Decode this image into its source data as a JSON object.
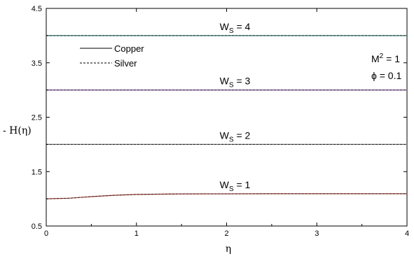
{
  "chart_data": {
    "type": "line",
    "title": "",
    "xlabel": "η",
    "ylabel": "- H(η)",
    "xlim": [
      0,
      4
    ],
    "ylim": [
      0.5,
      4.5
    ],
    "x_ticks": [
      0,
      1,
      2,
      3,
      4
    ],
    "y_tick_labels": [
      {
        "v": 0.5,
        "label": "0.5"
      },
      {
        "v": 1.5,
        "label": "1.5"
      },
      {
        "v": 2.5,
        "label": "2.5"
      },
      {
        "v": 3.5,
        "label": "3.5"
      },
      {
        "v": 4.5,
        "label": "4.5"
      }
    ],
    "grid": false,
    "legend": {
      "placement": "upper-left",
      "entries": [
        {
          "label": "Copper",
          "style": "solid"
        },
        {
          "label": "Silver",
          "style": "dashed"
        }
      ]
    },
    "parameters": {
      "m_base": "M",
      "m_exp": "2",
      "m_rest": " = 1",
      "phi": "ϕ = 0.1"
    },
    "series": [
      {
        "name": "Copper",
        "group": "Ws=1",
        "color": "#c0392b",
        "style": "solid",
        "x": [
          0,
          0.25,
          0.5,
          0.75,
          1.0,
          1.5,
          2.0,
          2.5,
          3.0,
          3.5,
          4.0
        ],
        "y": [
          1.0,
          1.01,
          1.04,
          1.065,
          1.08,
          1.09,
          1.092,
          1.093,
          1.093,
          1.093,
          1.093
        ]
      },
      {
        "name": "Silver",
        "group": "Ws=1",
        "color": "#222222",
        "style": "dashed",
        "x": [
          0,
          0.25,
          0.5,
          0.75,
          1.0,
          1.5,
          2.0,
          2.5,
          3.0,
          3.5,
          4.0
        ],
        "y": [
          1.0,
          1.01,
          1.04,
          1.065,
          1.08,
          1.09,
          1.092,
          1.093,
          1.093,
          1.093,
          1.093
        ]
      },
      {
        "name": "Copper",
        "group": "Ws=2",
        "color": "#7a7a7a",
        "style": "solid",
        "x": [
          0,
          4
        ],
        "y": [
          2.0,
          2.0
        ]
      },
      {
        "name": "Silver",
        "group": "Ws=2",
        "color": "#222222",
        "style": "dashed",
        "x": [
          0,
          4
        ],
        "y": [
          2.0,
          2.0
        ]
      },
      {
        "name": "Copper",
        "group": "Ws=3",
        "color": "#8e44ad",
        "style": "solid",
        "x": [
          0,
          4
        ],
        "y": [
          3.0,
          3.0
        ]
      },
      {
        "name": "Silver",
        "group": "Ws=3",
        "color": "#222222",
        "style": "dashed",
        "x": [
          0,
          4
        ],
        "y": [
          3.0,
          3.0
        ]
      },
      {
        "name": "Copper",
        "group": "Ws=4",
        "color": "#1e7b6f",
        "style": "solid",
        "x": [
          0,
          4
        ],
        "y": [
          4.0,
          4.0
        ]
      },
      {
        "name": "Silver",
        "group": "Ws=4",
        "color": "#222222",
        "style": "dashed",
        "x": [
          0,
          4
        ],
        "y": [
          4.0,
          4.0
        ]
      }
    ],
    "annotations": [
      {
        "base": "W",
        "sub": "S",
        "rest": " = 4",
        "x": 2.0,
        "y": 4.0
      },
      {
        "base": "W",
        "sub": "S",
        "rest": " = 3",
        "x": 2.0,
        "y": 3.0
      },
      {
        "base": "W",
        "sub": "S",
        "rest": " = 2",
        "x": 2.0,
        "y": 2.0
      },
      {
        "base": "W",
        "sub": "S",
        "rest": " = 1",
        "x": 2.0,
        "y": 1.093
      }
    ]
  }
}
